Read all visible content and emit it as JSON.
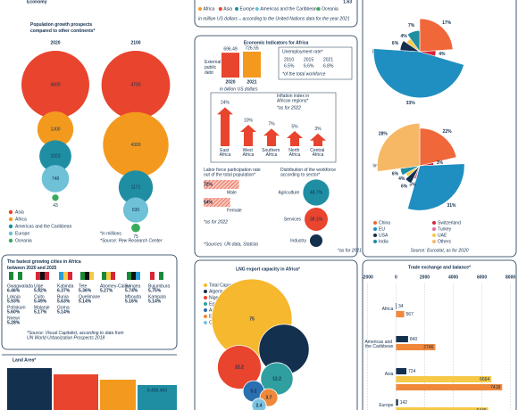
{
  "header": {
    "title": "Economy"
  },
  "population": {
    "title": "Population growth prospects compared to other continents*",
    "columns": [
      {
        "year": "2020",
        "values": [
          4600,
          1300,
          1023,
          748,
          43
        ]
      },
      {
        "year": "2100",
        "values": [
          4700,
          4300,
          1171,
          630,
          75
        ]
      }
    ],
    "legend": [
      "Asia",
      "Africa",
      "Americas and the Caribbean",
      "Europe",
      "Oceania"
    ],
    "colors": [
      "#e8442e",
      "#f39a1e",
      "#1f8ea3",
      "#6ec1d6",
      "#3aaa5c"
    ],
    "note": "*in millions",
    "source": "*Source: Pew Research Center"
  },
  "gdp_strip": {
    "legend": [
      "Africa",
      "Asia",
      "Europe",
      "Americas and the Caribbean",
      "Oceania"
    ],
    "colors": [
      "#f39a1e",
      "#e8442e",
      "#1f8ea3",
      "#6ec1d6",
      "#3aaa5c"
    ],
    "note": "in million US dollars – according to the United Nations data for the year 2021",
    "value": "1.63"
  },
  "economy": {
    "title": "Economic Indicators for Africa",
    "debt": {
      "label": "External public debt",
      "years": [
        "2020",
        "2021"
      ],
      "values": [
        696.49,
        726.55
      ],
      "unit": "in billion US dollars"
    },
    "unemployment": {
      "title": "Unemployment rate*",
      "years": [
        "2010",
        "2015",
        "2021"
      ],
      "values": [
        "6.5%",
        "6.6%",
        "6.8%"
      ],
      "note": "*of the total workforce"
    },
    "inflation": {
      "title": "Inflation index in African regions*",
      "note": "*as for 2022",
      "regions": [
        "East Africa",
        "West Africa",
        "Southern Africa",
        "North Africa",
        "Central Africa"
      ],
      "values": [
        24,
        10,
        7,
        5,
        3
      ],
      "value_labels": [
        "24%",
        "10%",
        "7%",
        "5%",
        "3%"
      ]
    },
    "labor": {
      "title": "Labor force participation rate out of the total population*",
      "groups": [
        "Male",
        "Female"
      ],
      "values": [
        72,
        54
      ],
      "value_labels": [
        "72%",
        "54%"
      ],
      "note": "*as for 2022"
    },
    "sectors": {
      "title": "Distribution of the workforce according to sector*",
      "names": [
        "Agriculture",
        "Services",
        "Industry"
      ],
      "values": [
        48.7,
        38.1,
        11.2
      ],
      "value_labels": [
        "48.7%",
        "38.1%",
        "11.2%"
      ],
      "colors": [
        "#1f8ea3",
        "#e8442e",
        "#14304f"
      ],
      "note": "*as for 2021"
    },
    "source": "*Sources: UN data, Statista"
  },
  "trade_partners": {
    "legend": [
      "China",
      "Switzerland",
      "EU",
      "Turkey",
      "USA",
      "UAE",
      "India",
      "Others"
    ],
    "colors": [
      "#f0673a",
      "#d6263a",
      "#1f8ec0",
      "#e0709a",
      "#14304f",
      "#f7c948",
      "#1f8ea3",
      "#f7b866"
    ],
    "exports": {
      "label": "Exports",
      "values": [
        17,
        4,
        33,
        null,
        6,
        4,
        7,
        null
      ],
      "value_labels": [
        "17%",
        "4%",
        "33%",
        null,
        "6%",
        "4%",
        "7%",
        null
      ]
    },
    "imports": {
      "label": "Imports",
      "values": [
        22,
        3,
        31,
        3,
        6,
        4,
        6,
        28
      ],
      "value_labels": [
        "22%",
        "3%",
        "31%",
        "3%",
        "6%",
        "4%",
        "6%",
        "28%"
      ]
    },
    "source": "Source: Eurostat, as for 2020"
  },
  "cities": {
    "title": "The fastest growing cities in Africa between 2020 and 2025",
    "groups": [
      [
        {
          "city": "Gwagwalada",
          "growth": "6.46%"
        },
        {
          "city": "Lokoja",
          "growth": "5.93%"
        },
        {
          "city": "Potiskum",
          "growth": "5.60%"
        },
        {
          "city": "Nnewi",
          "growth": "5.28%"
        }
      ],
      [
        {
          "city": "Uige",
          "growth": "5.92%"
        },
        {
          "city": "Cuito",
          "growth": "5.49%"
        },
        {
          "city": "Malanje",
          "growth": "5.17%"
        }
      ],
      [
        {
          "city": "Kabinda",
          "growth": "6.37%"
        },
        {
          "city": "Bunia",
          "growth": "5.63%"
        },
        {
          "city": "Goma",
          "growth": "5.14%"
        }
      ],
      [
        {
          "city": "Tete",
          "growth": "5.36%"
        },
        {
          "city": "Quelimane",
          "growth": "5.14%"
        }
      ],
      [
        {
          "city": "Abomey-Calavi",
          "growth": "5.27%"
        }
      ],
      [
        {
          "city": "Songea",
          "growth": "5.74%"
        },
        {
          "city": "Mbouda",
          "growth": "5.16%"
        }
      ],
      [
        {
          "city": "Bujumbura",
          "growth": "5.75%"
        },
        {
          "city": "Kampala",
          "growth": "5.14%"
        }
      ]
    ],
    "source": "*Source: Visual Capitalist, according to data from UN World Urbanization Prospects 2018"
  },
  "land_area": {
    "title": "Land Area*",
    "label": "8.486.460"
  },
  "lng": {
    "title": "LNG export capacity in Africa*",
    "names": [
      "Total Capacity",
      "Algeria",
      "Nigeria",
      "Egypt",
      "Angola",
      "Equatorial Guinea",
      "Cameroon"
    ],
    "values": [
      75,
      29.3,
      22.2,
      12.2,
      5.2,
      3.7,
      2.4
    ],
    "colors": [
      "#f5b82e",
      "#14304f",
      "#e8442e",
      "#2f9fa0",
      "#2a6fb0",
      "#f0883a",
      "#7cc3e0"
    ]
  },
  "trade": {
    "title": "Trade exchange and balance*",
    "xlim": [
      -2400,
      8400
    ],
    "xticks": [
      -2000,
      0,
      2000,
      4000,
      6000,
      8000
    ],
    "categories": [
      "Africa",
      "Americas and the Caribbean",
      "Asia",
      "Europe"
    ],
    "series": [
      {
        "color": "#14304f",
        "values": [
          34,
          840,
          724,
          142
        ]
      },
      {
        "color": "#f7c948",
        "values": [
          null,
          null,
          6664,
          6445
        ]
      },
      {
        "color": "#f0883a",
        "values": [
          567,
          2746,
          7418,
          null
        ]
      }
    ]
  }
}
